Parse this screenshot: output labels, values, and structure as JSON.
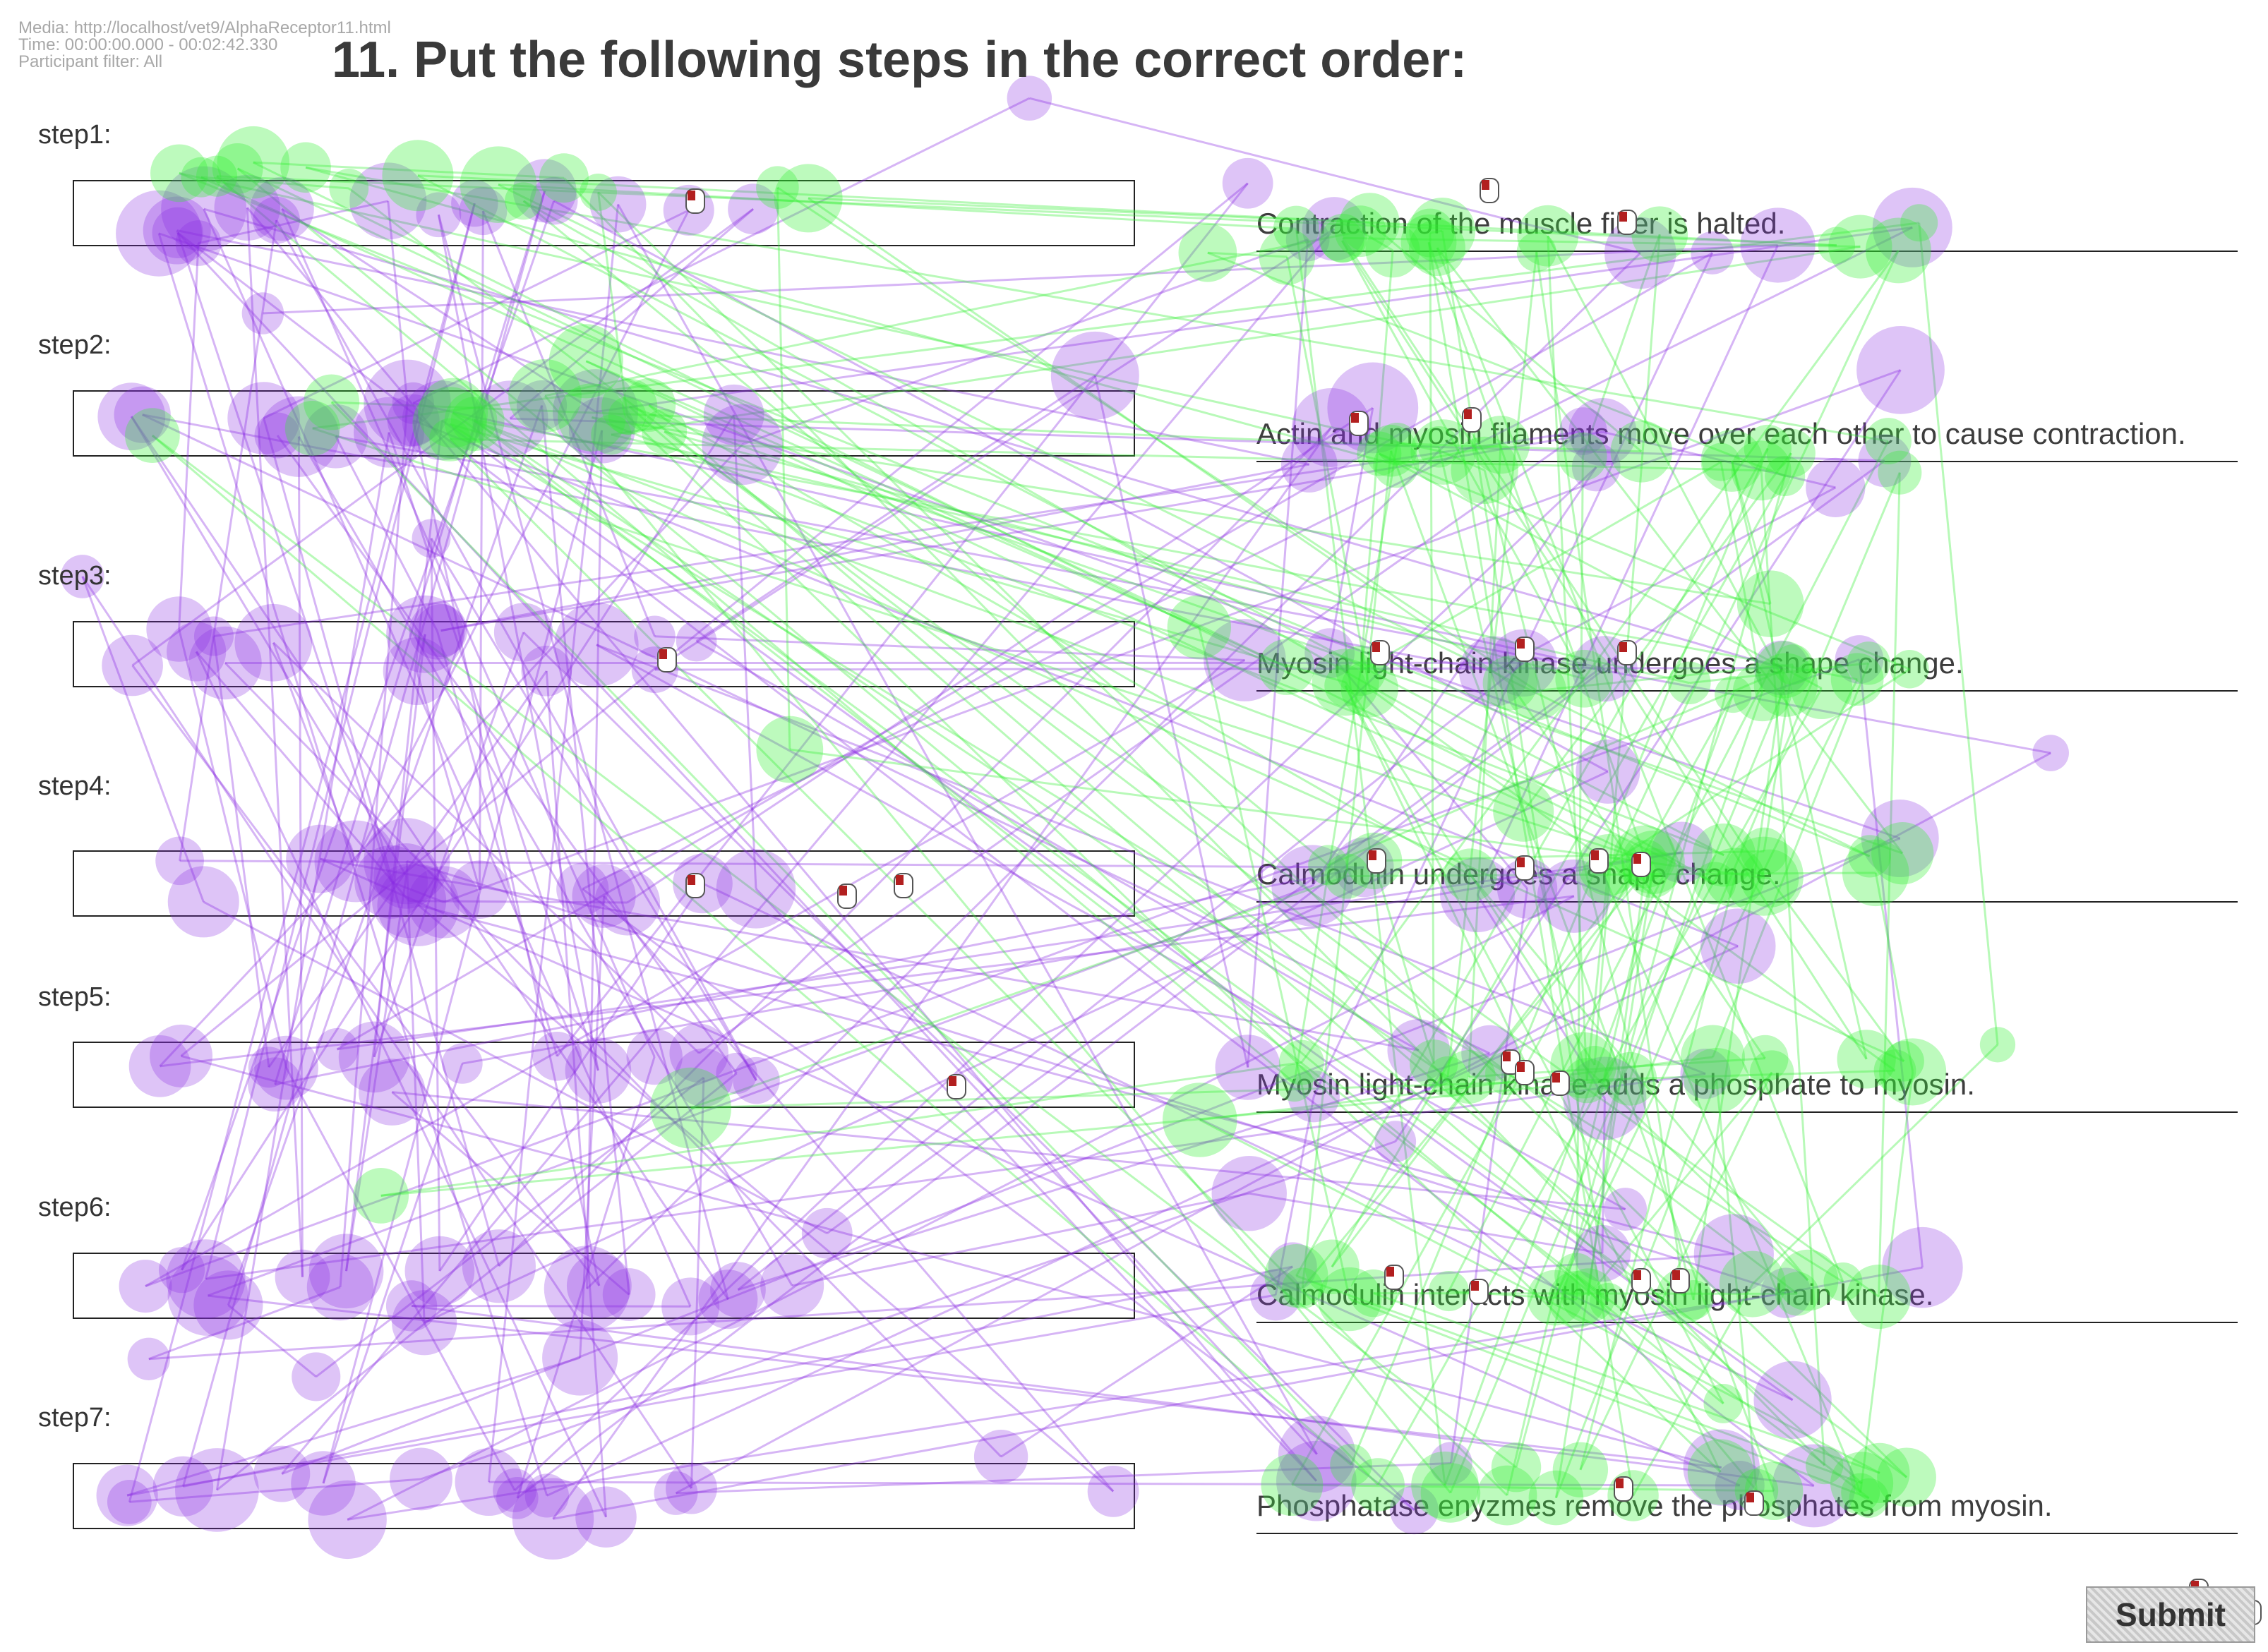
{
  "meta": {
    "media": "Media: http://localhost/vet9/AlphaReceptor11.html",
    "time": "Time: 00:00:00.000 - 00:02:42.330",
    "participant_filter": "Participant filter: All"
  },
  "question": "11. Put the following steps in the correct order:",
  "steps": [
    {
      "label": "step1:"
    },
    {
      "label": "step2:"
    },
    {
      "label": "step3:"
    },
    {
      "label": "step4:"
    },
    {
      "label": "step5:"
    },
    {
      "label": "step6:"
    },
    {
      "label": "step7:"
    }
  ],
  "statements": [
    "Contraction of the muscle fiber is halted.",
    "Actin and myosin filaments move over each other to cause contraction.",
    "Myosin light-chain kinase undergoes a shape change.",
    "Calmodulin undergoes a shape change.",
    "Myosin light-chain kinase adds a phosphate to myosin.",
    "Calmodulin interacts with myosin light-chain kinase.",
    "Phosphatase enyzmes remove the phosphates from myosin."
  ],
  "submit_label": "Submit",
  "overlay": {
    "colors": {
      "purple": "#8a2be2",
      "green": "#33ee33",
      "cursor_red": "#b21f1f"
    },
    "icon": "mouse-click-icon"
  }
}
